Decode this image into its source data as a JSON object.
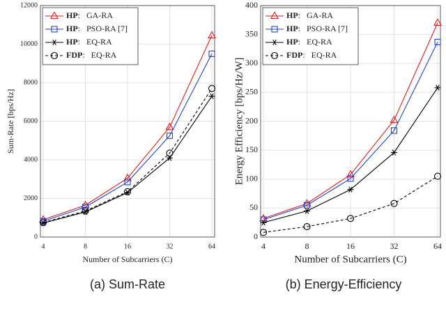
{
  "chart_data": [
    {
      "type": "line",
      "caption": "(a) Sum-Rate",
      "ylabel": "Sum-Rate [bps/Hz]",
      "xlabel": "Number of Subcarriers (C)",
      "categories": [
        "4",
        "8",
        "16",
        "32",
        "64"
      ],
      "ylim": [
        0,
        12000
      ],
      "yticks": [
        0,
        2000,
        4000,
        6000,
        8000,
        10000,
        12000
      ],
      "grid": true,
      "legend": "upper-left",
      "series": [
        {
          "name": "HP: GA-RA",
          "color": "#e41a1c",
          "marker": "triangle",
          "linestyle": "solid",
          "values": [
            900,
            1650,
            3050,
            5700,
            10450
          ]
        },
        {
          "name": "HP: PSO-RA [7]",
          "color": "#1f3fd6",
          "marker": "square",
          "linestyle": "solid",
          "values": [
            820,
            1550,
            2850,
            5250,
            9500
          ]
        },
        {
          "name": "HP: EQ-RA",
          "color": "#000000",
          "marker": "star",
          "linestyle": "solid",
          "values": [
            720,
            1300,
            2300,
            4100,
            7300
          ]
        },
        {
          "name": "FDP: EQ-RA",
          "color": "#000000",
          "marker": "circle",
          "linestyle": "dashed",
          "values": [
            750,
            1350,
            2350,
            4350,
            7700
          ]
        }
      ]
    },
    {
      "type": "line",
      "caption": "(b) Energy-Efficiency",
      "ylabel": "Energy Efficiency [bps/Hz/W]",
      "xlabel": "Number of Subcarriers (C)",
      "categories": [
        "4",
        "8",
        "16",
        "32",
        "64"
      ],
      "ylim": [
        0,
        400
      ],
      "yticks": [
        0,
        50,
        100,
        150,
        200,
        250,
        300,
        350,
        400
      ],
      "grid": true,
      "legend": "upper-left",
      "series": [
        {
          "name": "HP: GA-RA",
          "color": "#e41a1c",
          "marker": "triangle",
          "linestyle": "solid",
          "values": [
            32,
            58,
            108,
            202,
            370
          ]
        },
        {
          "name": "HP: PSO-RA [7]",
          "color": "#1f3fd6",
          "marker": "square",
          "linestyle": "solid",
          "values": [
            30,
            55,
            101,
            184,
            337
          ]
        },
        {
          "name": "HP: EQ-RA",
          "color": "#000000",
          "marker": "star",
          "linestyle": "solid",
          "values": [
            25,
            45,
            82,
            146,
            258
          ]
        },
        {
          "name": "FDP: EQ-RA",
          "color": "#000000",
          "marker": "circle",
          "linestyle": "dashed",
          "values": [
            8,
            18,
            32,
            58,
            105
          ]
        }
      ]
    }
  ]
}
